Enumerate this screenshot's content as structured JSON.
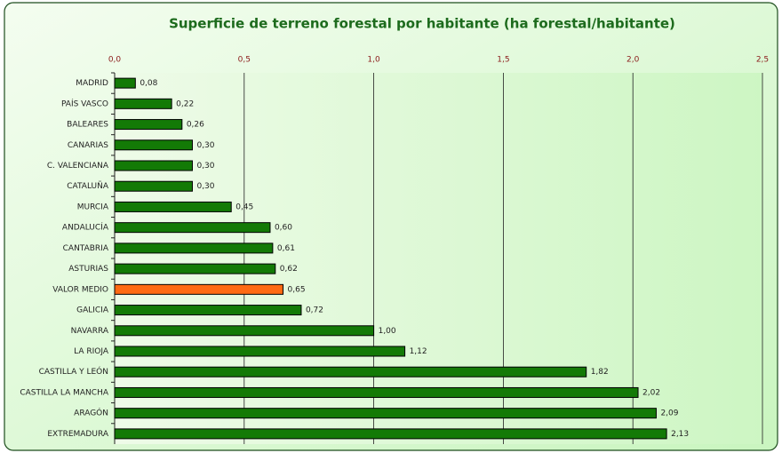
{
  "chart_data": {
    "type": "bar",
    "orientation": "horizontal",
    "title": "Superficie de terreno forestal por habitante (ha forestal/habitante)",
    "categories": [
      "MADRID",
      "PAÍS VASCO",
      "BALEARES",
      "CANARIAS",
      "C. VALENCIANA",
      "CATALUÑA",
      "MURCIA",
      "ANDALUCÍA",
      "CANTABRIA",
      "ASTURIAS",
      "VALOR MEDIO",
      "GALICIA",
      "NAVARRA",
      "LA RIOJA",
      "CASTILLA Y LEÓN",
      "CASTILLA LA MANCHA",
      "ARAGÓN",
      "EXTREMADURA"
    ],
    "values": [
      0.08,
      0.22,
      0.26,
      0.3,
      0.3,
      0.3,
      0.45,
      0.6,
      0.61,
      0.62,
      0.65,
      0.72,
      1.0,
      1.12,
      1.82,
      2.02,
      2.09,
      2.13
    ],
    "value_labels": [
      "0,08",
      "0,22",
      "0,26",
      "0,30",
      "0,30",
      "0,30",
      "0,45",
      "0,60",
      "0,61",
      "0,62",
      "0,65",
      "0,72",
      "1,00",
      "1,12",
      "1,82",
      "2,02",
      "2,09",
      "2,13"
    ],
    "colors": [
      "#137a06",
      "#137a06",
      "#137a06",
      "#137a06",
      "#137a06",
      "#137a06",
      "#137a06",
      "#137a06",
      "#137a06",
      "#137a06",
      "#ff6a13",
      "#137a06",
      "#137a06",
      "#137a06",
      "#137a06",
      "#137a06",
      "#137a06",
      "#137a06"
    ],
    "xlim": [
      0,
      2.5
    ],
    "xticks": [
      {
        "value": 0,
        "label": "0,0"
      },
      {
        "value": 0.5,
        "label": "0,5"
      },
      {
        "value": 1,
        "label": "1,0"
      },
      {
        "value": 1.5,
        "label": "1,5"
      },
      {
        "value": 2,
        "label": "2,0"
      },
      {
        "value": 2.5,
        "label": "2,5"
      }
    ],
    "grid": true
  }
}
